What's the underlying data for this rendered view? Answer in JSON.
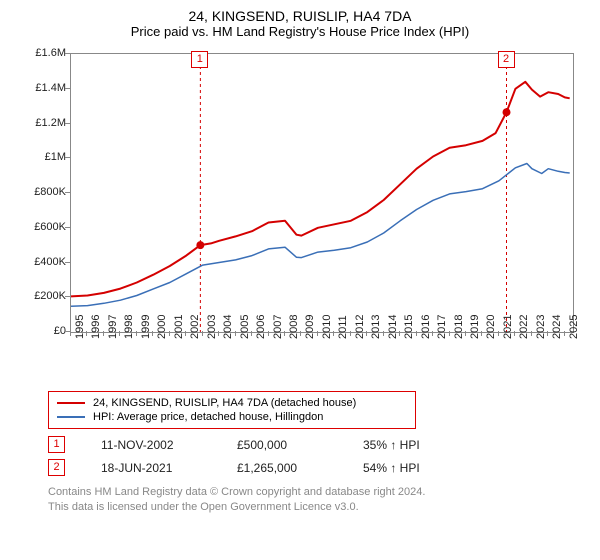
{
  "title_line1": "24, KINGSEND, RUISLIP, HA4 7DA",
  "title_line2": "Price paid vs. HM Land Registry's House Price Index (HPI)",
  "chart": {
    "type": "line",
    "background_color": "#ffffff",
    "border_color": "#888888",
    "y_axis": {
      "min": 0,
      "max": 1600000,
      "ticks": [
        0,
        200000,
        400000,
        600000,
        800000,
        1000000,
        1200000,
        1400000,
        1600000
      ],
      "labels": [
        "£0",
        "£200K",
        "£400K",
        "£600K",
        "£800K",
        "£1M",
        "£1.2M",
        "£1.4M",
        "£1.6M"
      ],
      "label_fontsize": 11
    },
    "x_axis": {
      "min": 1995,
      "max": 2025.5,
      "ticks": [
        1995,
        1996,
        1997,
        1998,
        1999,
        2000,
        2001,
        2002,
        2003,
        2004,
        2005,
        2006,
        2007,
        2008,
        2009,
        2010,
        2011,
        2012,
        2013,
        2014,
        2015,
        2016,
        2017,
        2018,
        2019,
        2020,
        2021,
        2022,
        2023,
        2024,
        2025
      ],
      "labels": [
        "1995",
        "1996",
        "1997",
        "1998",
        "1999",
        "2000",
        "2001",
        "2002",
        "2003",
        "2004",
        "2005",
        "2006",
        "2007",
        "2008",
        "2009",
        "2010",
        "2011",
        "2012",
        "2013",
        "2014",
        "2015",
        "2016",
        "2017",
        "2018",
        "2019",
        "2020",
        "2021",
        "2022",
        "2023",
        "2024",
        "2025"
      ],
      "label_fontsize": 11
    },
    "series": [
      {
        "name": "24, KINGSEND, RUISLIP, HA4 7DA (detached house)",
        "color": "#d40000",
        "line_width": 2,
        "points": [
          [
            1995,
            205000
          ],
          [
            1996,
            210000
          ],
          [
            1997,
            225000
          ],
          [
            1998,
            250000
          ],
          [
            1999,
            285000
          ],
          [
            2000,
            330000
          ],
          [
            2001,
            380000
          ],
          [
            2002,
            440000
          ],
          [
            2002.86,
            500000
          ],
          [
            2003.5,
            510000
          ],
          [
            2004,
            525000
          ],
          [
            2005,
            550000
          ],
          [
            2006,
            580000
          ],
          [
            2007,
            630000
          ],
          [
            2008,
            640000
          ],
          [
            2008.7,
            560000
          ],
          [
            2009,
            555000
          ],
          [
            2010,
            600000
          ],
          [
            2011,
            620000
          ],
          [
            2012,
            640000
          ],
          [
            2013,
            690000
          ],
          [
            2014,
            760000
          ],
          [
            2015,
            850000
          ],
          [
            2016,
            940000
          ],
          [
            2017,
            1010000
          ],
          [
            2018,
            1060000
          ],
          [
            2019,
            1075000
          ],
          [
            2020,
            1100000
          ],
          [
            2020.8,
            1145000
          ],
          [
            2021.46,
            1265000
          ],
          [
            2022,
            1400000
          ],
          [
            2022.6,
            1440000
          ],
          [
            2023,
            1395000
          ],
          [
            2023.5,
            1355000
          ],
          [
            2024,
            1380000
          ],
          [
            2024.6,
            1370000
          ],
          [
            2025,
            1350000
          ],
          [
            2025.3,
            1345000
          ]
        ]
      },
      {
        "name": "HPI: Average price, detached house, Hillingdon",
        "color": "#3a6fb7",
        "line_width": 1.5,
        "points": [
          [
            1995,
            148000
          ],
          [
            1996,
            152000
          ],
          [
            1997,
            165000
          ],
          [
            1998,
            183000
          ],
          [
            1999,
            210000
          ],
          [
            2000,
            248000
          ],
          [
            2001,
            285000
          ],
          [
            2002,
            335000
          ],
          [
            2003,
            385000
          ],
          [
            2004,
            400000
          ],
          [
            2005,
            415000
          ],
          [
            2006,
            440000
          ],
          [
            2007,
            478000
          ],
          [
            2008,
            488000
          ],
          [
            2008.7,
            430000
          ],
          [
            2009,
            428000
          ],
          [
            2010,
            460000
          ],
          [
            2011,
            470000
          ],
          [
            2012,
            485000
          ],
          [
            2013,
            518000
          ],
          [
            2014,
            570000
          ],
          [
            2015,
            640000
          ],
          [
            2016,
            705000
          ],
          [
            2017,
            758000
          ],
          [
            2018,
            795000
          ],
          [
            2019,
            808000
          ],
          [
            2020,
            825000
          ],
          [
            2021,
            870000
          ],
          [
            2022,
            945000
          ],
          [
            2022.7,
            970000
          ],
          [
            2023,
            940000
          ],
          [
            2023.6,
            912000
          ],
          [
            2024,
            940000
          ],
          [
            2024.6,
            925000
          ],
          [
            2025,
            918000
          ],
          [
            2025.3,
            915000
          ]
        ]
      }
    ],
    "vlines": [
      {
        "x": 2002.86,
        "color": "#d40000",
        "dash": "3,3",
        "marker_label": "1"
      },
      {
        "x": 2021.46,
        "color": "#d40000",
        "dash": "3,3",
        "marker_label": "2"
      }
    ],
    "sale_markers": [
      {
        "x": 2002.86,
        "y": 500000,
        "color": "#d40000"
      },
      {
        "x": 2021.46,
        "y": 1265000,
        "color": "#d40000"
      }
    ]
  },
  "legend": {
    "items": [
      {
        "label": "24, KINGSEND, RUISLIP, HA4 7DA (detached house)",
        "color": "#d40000"
      },
      {
        "label": "HPI: Average price, detached house, Hillingdon",
        "color": "#3a6fb7"
      }
    ]
  },
  "data_rows": [
    {
      "marker": "1",
      "date": "11-NOV-2002",
      "price": "£500,000",
      "vs_hpi": "35% ↑ HPI"
    },
    {
      "marker": "2",
      "date": "18-JUN-2021",
      "price": "£1,265,000",
      "vs_hpi": "54% ↑ HPI"
    }
  ],
  "disclaimer_l1": "Contains HM Land Registry data © Crown copyright and database right 2024.",
  "disclaimer_l2": "This data is licensed under the Open Government Licence v3.0."
}
